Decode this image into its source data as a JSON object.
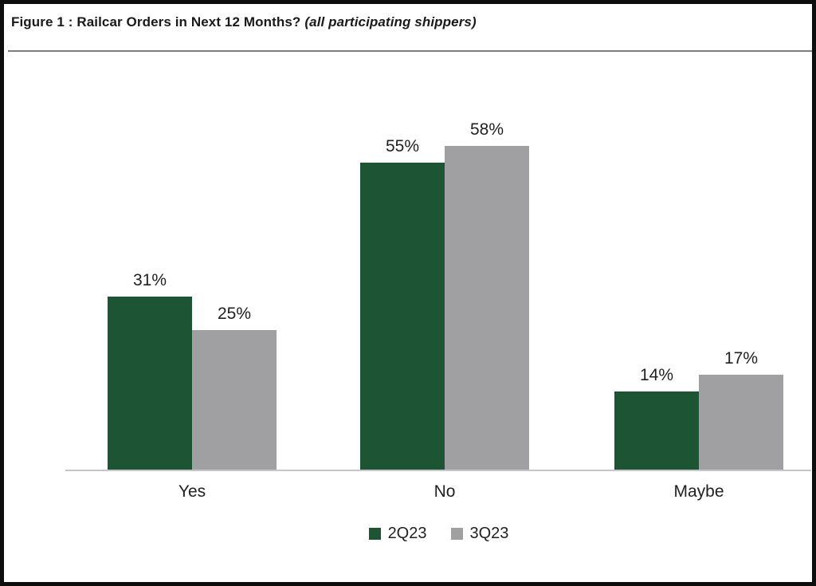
{
  "figure": {
    "title_main": "Figure 1 : Railcar Orders in Next 12 Months?",
    "title_note": "(all participating shippers)"
  },
  "chart_data": {
    "type": "bar",
    "title": "Figure 1 : Railcar Orders in Next 12 Months? (all participating shippers)",
    "categories": [
      "Yes",
      "No",
      "Maybe"
    ],
    "series": [
      {
        "name": "2Q23",
        "color": "#1d5434",
        "values": [
          31,
          55,
          14
        ]
      },
      {
        "name": "3Q23",
        "color": "#a0a0a3",
        "values": [
          25,
          58,
          17
        ]
      }
    ],
    "unit": "%",
    "xlabel": "",
    "ylabel": "",
    "ylim": [
      0,
      75
    ],
    "grid": false,
    "value_labels_shown": true,
    "legend_position": "bottom"
  },
  "colors": {
    "series_green": "#1d5434",
    "series_gray": "#a0a0a3",
    "axis_line": "#c6c6c9",
    "separator_line": "#7d7d7d",
    "frame_border": "#0d0d0d",
    "text": "#212121"
  }
}
